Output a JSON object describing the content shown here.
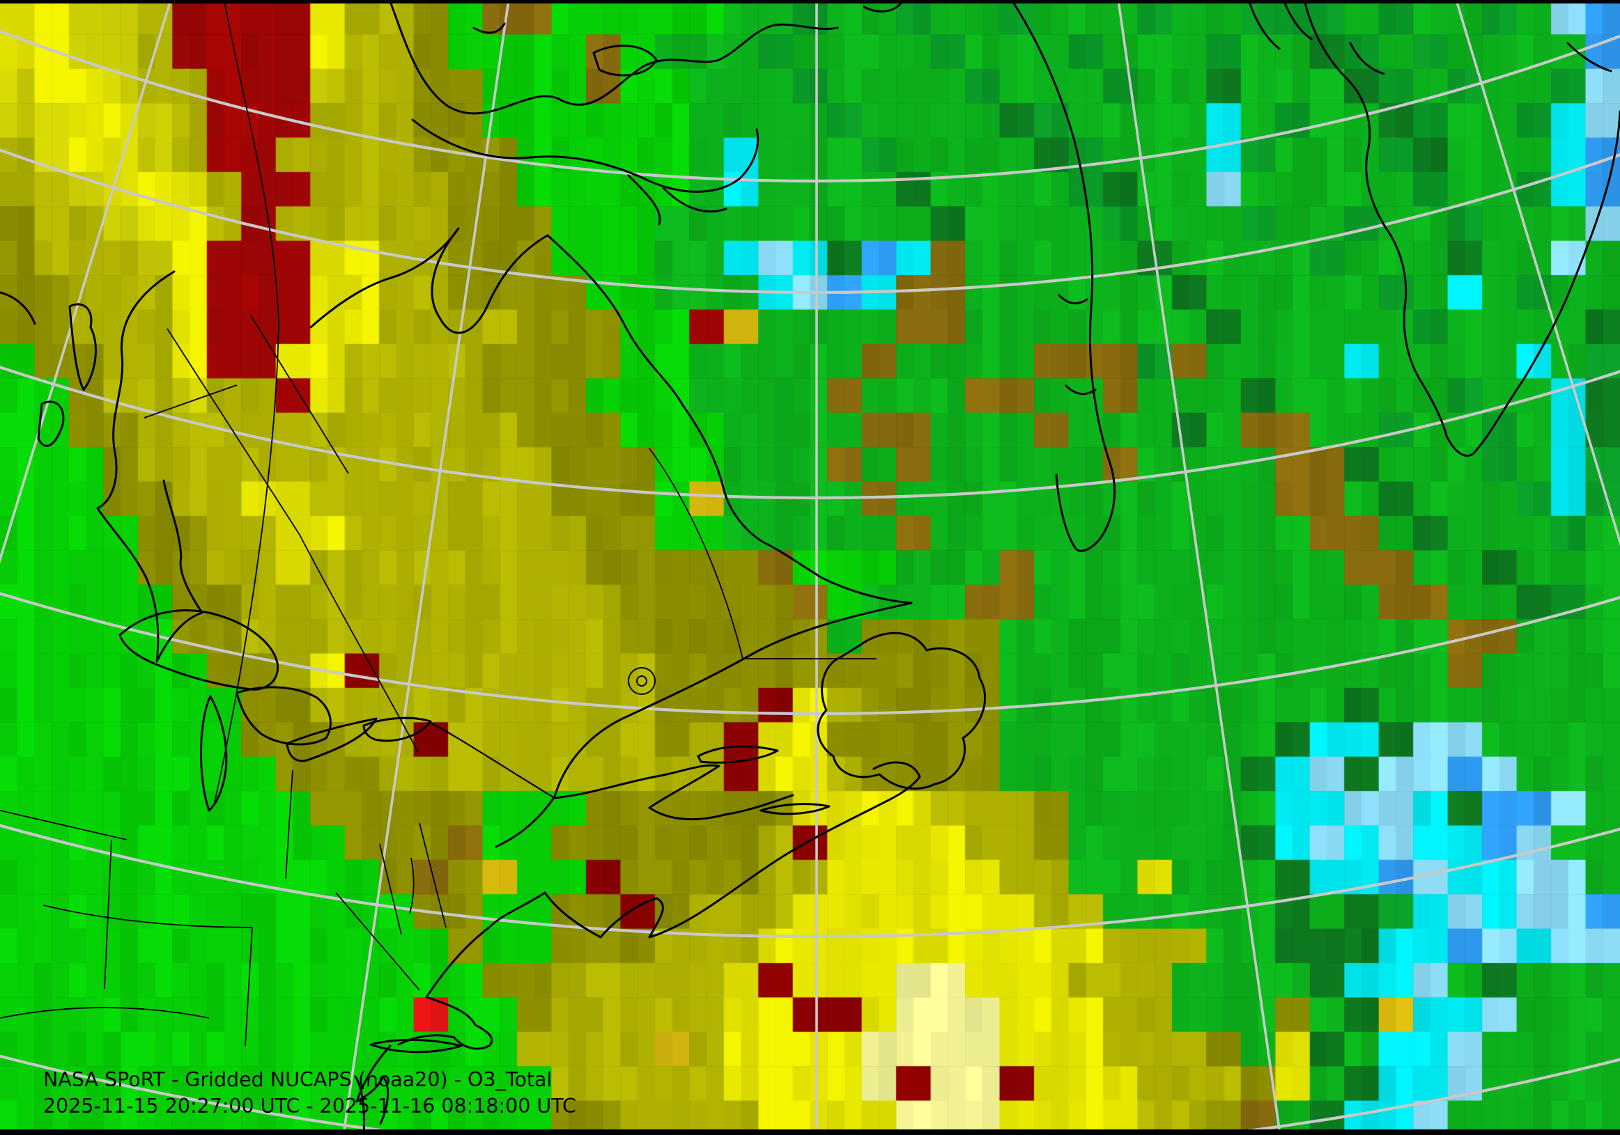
{
  "map": {
    "title": "NASA SPoRT - Gridded NUCAPS (noaa20) - O3_Total",
    "time_range": "2025-11-15 20:27:00 UTC - 2025-11-16 08:18:00 UTC",
    "agency": "NASA SPoRT",
    "product": "Gridded NUCAPS",
    "satellite": "noaa20",
    "parameter": "O3_Total",
    "start_time": "2025-11-15 20:27:00 UTC",
    "end_time": "2025-11-16 08:18:00 UTC"
  },
  "colors": {
    "graticule": "#c9c9c9",
    "coastline": "#000000",
    "political_border": "#000000",
    "caption_text": "#000000",
    "frame": "#000000"
  },
  "chart_data": {
    "type": "heatmap",
    "title": "NASA SPoRT - Gridded NUCAPS (noaa20) - O3_Total",
    "subtitle": "2025-11-15 20:27:00 UTC - 2025-11-16 08:18:00 UTC",
    "cols": 47,
    "rows": 33,
    "legend_position": "none",
    "grid_lines": "graticule",
    "palette": {
      "G": {
        "hex": "#06d206",
        "meaning": "ozone moderate-low (bright green)"
      },
      "g": {
        "hex": "#0cb31c",
        "meaning": "ozone moderate (green)"
      },
      "d": {
        "hex": "#0a9b28",
        "meaning": "ozone moderate (deep green)"
      },
      "f": {
        "hex": "#0d7a1f",
        "meaning": "ozone moderate-high patch (dark green)"
      },
      "Y": {
        "hex": "#e9e900",
        "meaning": "ozone elevated (bright yellow)"
      },
      "p": {
        "hex": "#f5f596",
        "meaning": "ozone elevated core (pale yellow)"
      },
      "L": {
        "hex": "#ced104",
        "meaning": "ozone elevated (yellow-green)"
      },
      "y": {
        "hex": "#b1b401",
        "meaning": "ozone high (olive yellow)"
      },
      "o": {
        "hex": "#8e9000",
        "meaning": "ozone high (dark olive)"
      },
      "b": {
        "hex": "#8a6d0e",
        "meaning": "ozone very high (brown)"
      },
      "A": {
        "hex": "#d8ba0c",
        "meaning": "gold fleck"
      },
      "R": {
        "hex": "#a00505",
        "meaning": "ozone extreme (dark red)"
      },
      "r": {
        "hex": "#8b0000",
        "meaning": "ozone extreme fleck (deep red)"
      },
      "E": {
        "hex": "#f01515",
        "meaning": "ozone extreme fleck (bright red)"
      },
      "C": {
        "hex": "#00eaf2",
        "meaning": "ozone low (cyan)"
      },
      "c": {
        "hex": "#8fe0fb",
        "meaning": "ozone low (pale cyan)"
      },
      "B": {
        "hex": "#2f9df5",
        "meaning": "ozone lowest (blue)"
      }
    },
    "grid": [
      "YYLLyRRRRYyyoGbbGGGGGggdggdggdgggdggdddgdggdgcB",
      "YYLLyRRRRYyyoGGGGbGgggdggggdgggdgggdggfdgdggggB",
      "LYYLyyRRRLyyooGGGbGGgggdggggdgggdggfgggfdgdggdc",
      "LLYYLyRRRyyyooGGGGGGggggdggggfdggggCgdggfdggdCc",
      "yLYYLyRRyyyyoooGGGGGgCgggdggggfdgggCdgggdfgggCB",
      "yyLYYYyRRyyyyooGGGGGgCggggfggggdfggcgggggdggdCB",
      "oyyLYYyRyyyyyoooGGGggggggggfggggdgggdggdggdgggc",
      "oyyyLYRRRYYyyoooGGGggCcCfBCbgggggfggggdgggfggcg",
      "ooyyyYRRRYYyyooooGGgggCcBCbbggggggfgggggdgCgdgg",
      "ooyyyYRRRYYyyyyoooGGRAggggbbgggggggfgggggdggggf",
      "GooyyYRRYYyyyyooooGGgggggbggggbbbdbggggCggggCgd",
      "GGoyyLyyRYyyyyoooGGGggggbgggbbggbgggfgggggdggCf",
      "GGooyyyyyyyyyyyoooGGGggggbbgggbgggfgbbggdggdgCf",
      "GGGoyyyyyyyyyyyyoooGGgggbgbgggggbggggbbfgggdgCd",
      "GGGooyyYYyyyyyyyoooGAggggbgggggggggggbbgfgggdCd",
      "GGGGooyyYYyyyyyyyooGGgggggbgggggggggggbbgfgggdg",
      "GGGGooyyYyyyyyyyyooooobGGGgggbgggggggggbbggfggg",
      "GGGGGooyyyyyyyyyyyooooobGgggbbggggggggggbbggfdg",
      "GGGGGooyyyyyyyyyyyoooooogoooogggggggggggggbbggg",
      "GGGGGGooyYryyyyyyyyoooooooooogggggggggggggbgggg",
      "GGGGGGGooyyyyyyyyyyooorYyooooggggggggggfggggggg",
      "GGGGGGGoooyyryyyyyyoyrYYoooooggggggggfCCfccgggg",
      "GGGGGGGGoooyyyyyyyyyyrYYyoooogggggggfCcfccBcggg",
      "GGGGGGGGGoooooGGGooooooYYYYyyyoggggggCCccCfBBcg",
      "GGGGGGGGGGooobGGooooooyrYYYYyyogggggfCcCcCCBcgg",
      "GGGGGGGGGGGoboAGGrooooyyYYYYYyyggYgggfCCBcCCccg",
      "GGGGGGGGGGGGooGGooroyyyYYYYYYYyygggggfgfdCcCccB",
      "GGGGGGGGGGGGGoGGoooyyyYYYYYYYYYYyyyggfffCCBcCcc",
      "GGGGGGGGGGGGGGooyyyyyYrYYYppYYYyyyggggfCCcgfggg",
      "GGGGGGGGGGGGEGGoyyyyyYYrrYpppYYYyygggogfACCcggg",
      "GGGGGGGGGGGGGGGyyyyAyYYYYppppYYYyyyogYfgCCcgggg",
      "GGGGGGGGGGGGGGGGyyyyyYYYYprpprYYYyyyoYgfCCcgggg",
      "GGGGGGGGGGGGGGGGooyyyyYYYYpppYYYYyyobgfCCcggggg"
    ]
  }
}
